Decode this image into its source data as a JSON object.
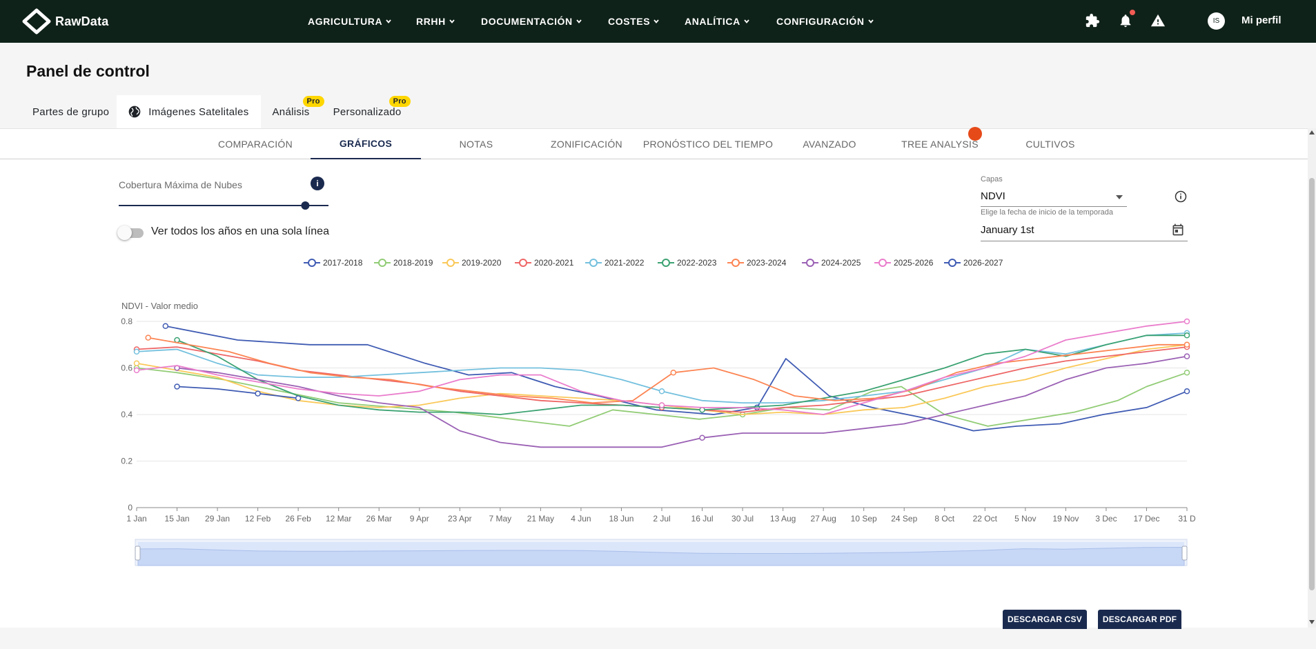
{
  "app": {
    "name": "RawData"
  },
  "nav": {
    "items": [
      "AGRICULTURA",
      "RRHH",
      "DOCUMENTACIÓN",
      "COSTES",
      "ANALÍTICA",
      "CONFIGURACIÓN"
    ],
    "avatar_initials": "IS",
    "profile_label": "Mi perfil"
  },
  "page": {
    "title": "Panel de control"
  },
  "main_tabs": [
    {
      "label": "Partes de grupo",
      "active": false,
      "pro": false
    },
    {
      "label": "Imágenes Satelitales",
      "active": true,
      "pro": false
    },
    {
      "label": "Análisis",
      "active": false,
      "pro": true
    },
    {
      "label": "Personalizado",
      "active": false,
      "pro": true
    }
  ],
  "pro_badge": "Pro",
  "sub_tabs": [
    "COMPARACIÓN",
    "GRÁFICOS",
    "NOTAS",
    "ZONIFICACIÓN",
    "PRONÓSTICO DEL TIEMPO",
    "AVANZADO",
    "TREE ANALYSIS",
    "CULTIVOS"
  ],
  "sub_tab_active": 1,
  "controls": {
    "cloud_label": "Cobertura Máxima de Nubes",
    "cloud_value_fraction": 0.9,
    "toggle_label": "Ver todos los años en una sola línea",
    "toggle_on": false,
    "layers_label": "Capas",
    "layers_value": "NDVI",
    "season_label": "Elige la fecha de inicio de la temporada",
    "season_value": "January 1st"
  },
  "buttons": {
    "csv": "DESCARGAR CSV",
    "pdf": "DESCARGAR PDF"
  },
  "colors": {
    "nav_bg": "#0f2219",
    "accent": "#1a2a4f",
    "pro": "#ffd600",
    "series": [
      "#3f5bb3",
      "#91cc75",
      "#fac858",
      "#ee6666",
      "#73c0de",
      "#3ba272",
      "#fc8452",
      "#9a60b4",
      "#ea7ccc",
      "#3f5bb3"
    ]
  },
  "chart_data": {
    "type": "line",
    "ylabel": "NDVI - Valor medio",
    "ylim": [
      0,
      0.8
    ],
    "y_ticks": [
      "0",
      "0.2",
      "0.4",
      "0.6",
      "0.8"
    ],
    "x_ticks": [
      "1 Jan",
      "15 Jan",
      "29 Jan",
      "12 Feb",
      "26 Feb",
      "12 Mar",
      "26 Mar",
      "9 Apr",
      "23 Apr",
      "7 May",
      "21 May",
      "4 Jun",
      "18 Jun",
      "2 Jul",
      "16 Jul",
      "30 Jul",
      "13 Aug",
      "27 Aug",
      "10 Sep",
      "24 Sep",
      "8 Oct",
      "22 Oct",
      "5 Nov",
      "19 Nov",
      "3 Dec",
      "17 Dec",
      "31 D"
    ],
    "x_domain_days": [
      0,
      364
    ],
    "grid": true,
    "legend_position": "top",
    "series": [
      {
        "name": "2017-2018",
        "points": [
          [
            10,
            0.78
          ],
          [
            35,
            0.72
          ],
          [
            60,
            0.7
          ],
          [
            80,
            0.7
          ],
          [
            100,
            0.62
          ],
          [
            115,
            0.57
          ],
          [
            130,
            0.58
          ],
          [
            145,
            0.52
          ],
          [
            160,
            0.48
          ],
          [
            180,
            0.42
          ],
          [
            200,
            0.4
          ],
          [
            215,
            0.43
          ],
          [
            225,
            0.64
          ],
          [
            240,
            0.48
          ],
          [
            255,
            0.43
          ],
          [
            275,
            0.38
          ],
          [
            290,
            0.33
          ],
          [
            305,
            0.35
          ],
          [
            320,
            0.36
          ],
          [
            335,
            0.4
          ],
          [
            350,
            0.43
          ],
          [
            364,
            0.5
          ]
        ]
      },
      {
        "name": "2018-2019",
        "points": [
          [
            0,
            0.6
          ],
          [
            14,
            0.58
          ],
          [
            30,
            0.55
          ],
          [
            50,
            0.5
          ],
          [
            70,
            0.45
          ],
          [
            90,
            0.43
          ],
          [
            110,
            0.41
          ],
          [
            130,
            0.38
          ],
          [
            150,
            0.35
          ],
          [
            165,
            0.42
          ],
          [
            180,
            0.4
          ],
          [
            195,
            0.38
          ],
          [
            210,
            0.4
          ],
          [
            225,
            0.43
          ],
          [
            240,
            0.42
          ],
          [
            255,
            0.5
          ],
          [
            265,
            0.52
          ],
          [
            280,
            0.4
          ],
          [
            295,
            0.35
          ],
          [
            310,
            0.38
          ],
          [
            325,
            0.41
          ],
          [
            340,
            0.46
          ],
          [
            350,
            0.52
          ],
          [
            364,
            0.58
          ]
        ]
      },
      {
        "name": "2019-2020",
        "points": [
          [
            0,
            0.62
          ],
          [
            14,
            0.59
          ],
          [
            28,
            0.56
          ],
          [
            42,
            0.5
          ],
          [
            56,
            0.46
          ],
          [
            70,
            0.44
          ],
          [
            84,
            0.43
          ],
          [
            98,
            0.44
          ],
          [
            112,
            0.47
          ],
          [
            126,
            0.49
          ],
          [
            140,
            0.48
          ],
          [
            154,
            0.47
          ],
          [
            168,
            0.46
          ],
          [
            182,
            0.44
          ],
          [
            196,
            0.42
          ],
          [
            210,
            0.4
          ],
          [
            224,
            0.41
          ],
          [
            238,
            0.4
          ],
          [
            252,
            0.42
          ],
          [
            266,
            0.43
          ],
          [
            280,
            0.47
          ],
          [
            294,
            0.52
          ],
          [
            308,
            0.55
          ],
          [
            322,
            0.6
          ],
          [
            336,
            0.64
          ],
          [
            350,
            0.68
          ],
          [
            364,
            0.7
          ]
        ]
      },
      {
        "name": "2020-2021",
        "points": [
          [
            0,
            0.68
          ],
          [
            14,
            0.69
          ],
          [
            28,
            0.66
          ],
          [
            42,
            0.63
          ],
          [
            56,
            0.59
          ],
          [
            70,
            0.57
          ],
          [
            84,
            0.55
          ],
          [
            98,
            0.53
          ],
          [
            112,
            0.5
          ],
          [
            126,
            0.48
          ],
          [
            140,
            0.46
          ],
          [
            154,
            0.45
          ],
          [
            168,
            0.44
          ],
          [
            182,
            0.43
          ],
          [
            196,
            0.42
          ],
          [
            210,
            0.41
          ],
          [
            224,
            0.43
          ],
          [
            238,
            0.44
          ],
          [
            252,
            0.46
          ],
          [
            266,
            0.48
          ],
          [
            280,
            0.52
          ],
          [
            294,
            0.56
          ],
          [
            308,
            0.6
          ],
          [
            322,
            0.63
          ],
          [
            336,
            0.65
          ],
          [
            350,
            0.67
          ],
          [
            364,
            0.69
          ]
        ]
      },
      {
        "name": "2021-2022",
        "points": [
          [
            0,
            0.67
          ],
          [
            14,
            0.68
          ],
          [
            28,
            0.62
          ],
          [
            42,
            0.57
          ],
          [
            56,
            0.56
          ],
          [
            70,
            0.56
          ],
          [
            84,
            0.57
          ],
          [
            98,
            0.58
          ],
          [
            112,
            0.59
          ],
          [
            126,
            0.6
          ],
          [
            140,
            0.6
          ],
          [
            154,
            0.59
          ],
          [
            168,
            0.55
          ],
          [
            182,
            0.5
          ],
          [
            196,
            0.46
          ],
          [
            210,
            0.45
          ],
          [
            224,
            0.45
          ],
          [
            238,
            0.46
          ],
          [
            252,
            0.48
          ],
          [
            266,
            0.5
          ],
          [
            280,
            0.55
          ],
          [
            294,
            0.6
          ],
          [
            308,
            0.68
          ],
          [
            322,
            0.66
          ],
          [
            336,
            0.7
          ],
          [
            350,
            0.74
          ],
          [
            364,
            0.75
          ]
        ]
      },
      {
        "name": "2022-2023",
        "points": [
          [
            14,
            0.72
          ],
          [
            28,
            0.65
          ],
          [
            42,
            0.55
          ],
          [
            56,
            0.48
          ],
          [
            70,
            0.44
          ],
          [
            84,
            0.42
          ],
          [
            98,
            0.41
          ],
          [
            112,
            0.41
          ],
          [
            126,
            0.4
          ],
          [
            140,
            0.42
          ],
          [
            154,
            0.44
          ],
          [
            168,
            0.44
          ],
          [
            182,
            0.43
          ],
          [
            196,
            0.42
          ],
          [
            210,
            0.43
          ],
          [
            224,
            0.44
          ],
          [
            238,
            0.47
          ],
          [
            252,
            0.5
          ],
          [
            266,
            0.55
          ],
          [
            280,
            0.6
          ],
          [
            294,
            0.66
          ],
          [
            308,
            0.68
          ],
          [
            322,
            0.65
          ],
          [
            336,
            0.7
          ],
          [
            350,
            0.74
          ],
          [
            364,
            0.74
          ]
        ]
      },
      {
        "name": "2023-2024",
        "points": [
          [
            4,
            0.73
          ],
          [
            18,
            0.7
          ],
          [
            32,
            0.67
          ],
          [
            46,
            0.62
          ],
          [
            60,
            0.58
          ],
          [
            74,
            0.56
          ],
          [
            88,
            0.55
          ],
          [
            102,
            0.52
          ],
          [
            116,
            0.5
          ],
          [
            130,
            0.48
          ],
          [
            144,
            0.47
          ],
          [
            158,
            0.45
          ],
          [
            172,
            0.46
          ],
          [
            186,
            0.58
          ],
          [
            200,
            0.6
          ],
          [
            214,
            0.55
          ],
          [
            228,
            0.48
          ],
          [
            242,
            0.46
          ],
          [
            256,
            0.47
          ],
          [
            270,
            0.51
          ],
          [
            284,
            0.58
          ],
          [
            298,
            0.62
          ],
          [
            312,
            0.64
          ],
          [
            326,
            0.66
          ],
          [
            340,
            0.68
          ],
          [
            354,
            0.7
          ],
          [
            364,
            0.7
          ]
        ]
      },
      {
        "name": "2024-2025",
        "points": [
          [
            14,
            0.6
          ],
          [
            28,
            0.58
          ],
          [
            42,
            0.55
          ],
          [
            56,
            0.52
          ],
          [
            70,
            0.48
          ],
          [
            84,
            0.45
          ],
          [
            98,
            0.43
          ],
          [
            112,
            0.33
          ],
          [
            126,
            0.28
          ],
          [
            140,
            0.26
          ],
          [
            154,
            0.26
          ],
          [
            168,
            0.26
          ],
          [
            182,
            0.26
          ],
          [
            196,
            0.3
          ],
          [
            210,
            0.32
          ],
          [
            224,
            0.32
          ],
          [
            238,
            0.32
          ],
          [
            252,
            0.34
          ],
          [
            266,
            0.36
          ],
          [
            280,
            0.4
          ],
          [
            294,
            0.44
          ],
          [
            308,
            0.48
          ],
          [
            322,
            0.55
          ],
          [
            336,
            0.6
          ],
          [
            350,
            0.62
          ],
          [
            364,
            0.65
          ]
        ]
      },
      {
        "name": "2025-2026",
        "points": [
          [
            0,
            0.59
          ],
          [
            14,
            0.61
          ],
          [
            28,
            0.57
          ],
          [
            42,
            0.54
          ],
          [
            56,
            0.51
          ],
          [
            70,
            0.49
          ],
          [
            84,
            0.48
          ],
          [
            98,
            0.5
          ],
          [
            112,
            0.55
          ],
          [
            126,
            0.57
          ],
          [
            140,
            0.57
          ],
          [
            154,
            0.5
          ],
          [
            168,
            0.46
          ],
          [
            182,
            0.44
          ],
          [
            196,
            0.43
          ],
          [
            210,
            0.43
          ],
          [
            224,
            0.42
          ],
          [
            238,
            0.4
          ],
          [
            252,
            0.45
          ],
          [
            266,
            0.5
          ],
          [
            280,
            0.56
          ],
          [
            294,
            0.6
          ],
          [
            308,
            0.65
          ],
          [
            322,
            0.72
          ],
          [
            336,
            0.75
          ],
          [
            350,
            0.78
          ],
          [
            364,
            0.8
          ]
        ]
      },
      {
        "name": "2026-2027",
        "points": [
          [
            14,
            0.52
          ],
          [
            28,
            0.51
          ],
          [
            42,
            0.49
          ],
          [
            56,
            0.47
          ]
        ]
      }
    ]
  }
}
